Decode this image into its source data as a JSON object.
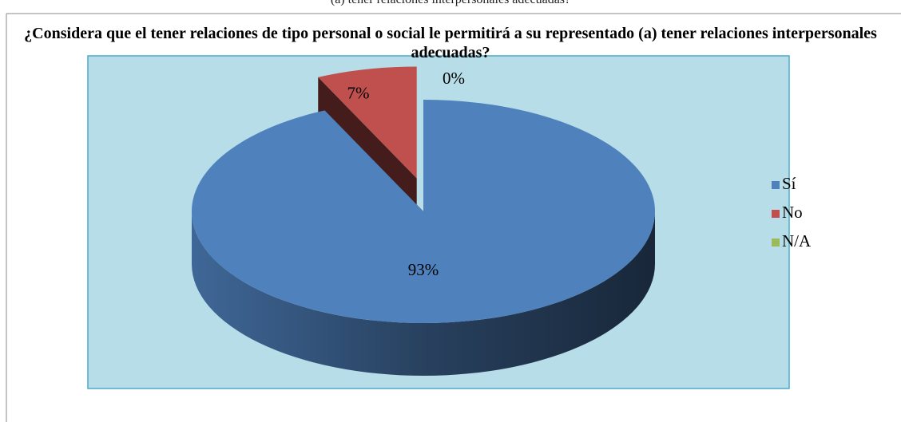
{
  "caption": "(a) tener relaciones interpersonales adecuadas?",
  "chart_data": {
    "type": "pie3d",
    "title": "¿Considera que el tener relaciones de tipo personal o social le permitirá a su representado (a) tener relaciones interpersonales adecuadas?",
    "categories": [
      "Sí",
      "No",
      "N/A"
    ],
    "values": [
      93,
      7,
      0
    ],
    "value_labels": [
      "93%",
      "7%",
      "0%"
    ],
    "colors": [
      "#4f81bd",
      "#c0504d",
      "#9bbb59"
    ],
    "legend": "right"
  }
}
